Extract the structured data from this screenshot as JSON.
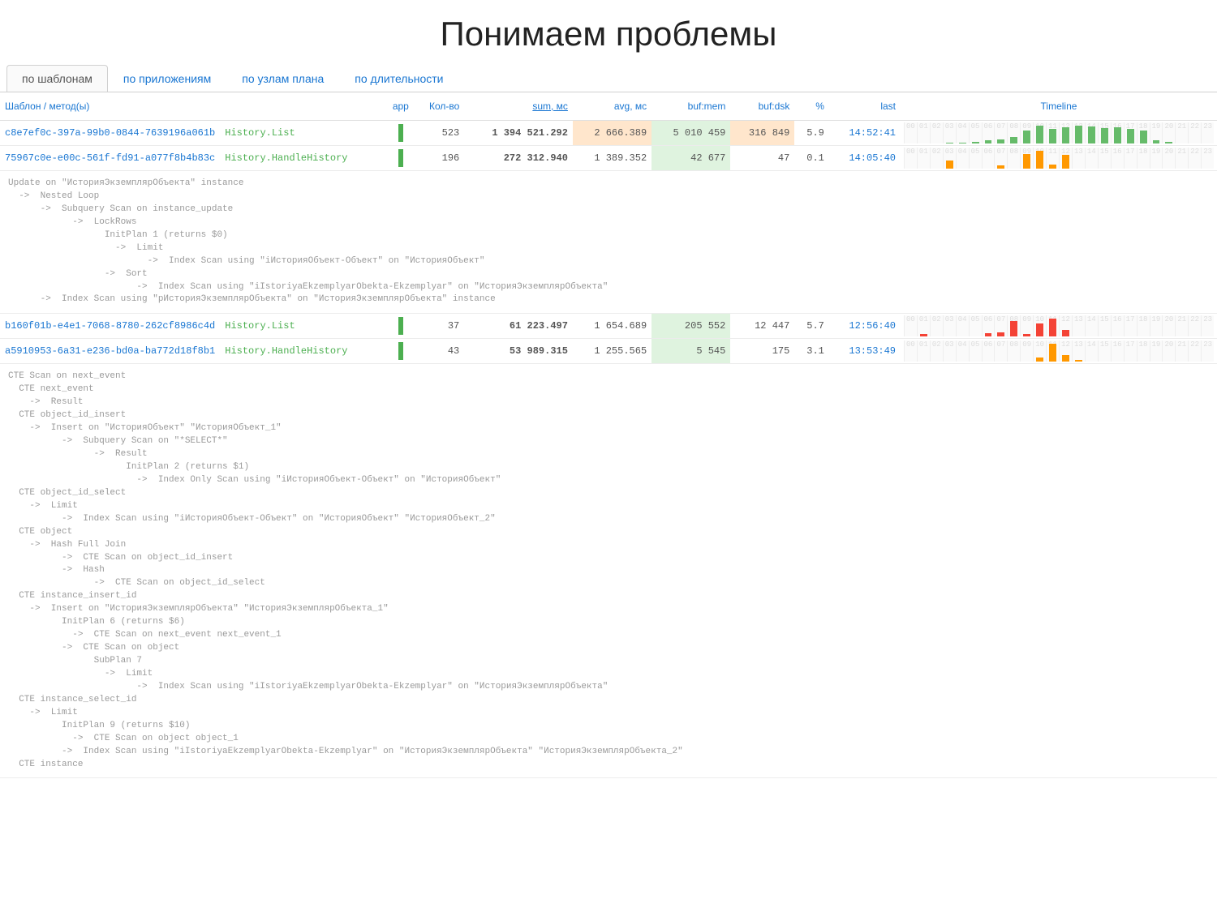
{
  "title": "Понимаем проблемы",
  "tabs": [
    {
      "label": "по шаблонам",
      "active": true
    },
    {
      "label": "по приложениям",
      "active": false
    },
    {
      "label": "по узлам плана",
      "active": false
    },
    {
      "label": "по длительности",
      "active": false
    }
  ],
  "headers": {
    "template": "Шаблон / метод(ы)",
    "app": "app",
    "kol": "Кол-во",
    "sum": "sum, мс",
    "avg": "avg, мс",
    "bufmem": "buf:mem",
    "bufdsk": "buf:dsk",
    "pct": "%",
    "last": "last",
    "timeline": "Timeline"
  },
  "colors": {
    "link": "#1976d2",
    "method": "#4caf50",
    "hl_orange": "#ffe6cc",
    "hl_green": "#dff3df",
    "tl_green": "#66bb6a",
    "tl_orange": "#ff9800",
    "tl_red": "#f44336"
  },
  "rows": [
    {
      "hash": "c8e7ef0c-397a-99b0-0844-7639196a061b",
      "method": "History.List",
      "kol": "523",
      "sum": "1 394 521.292",
      "avg": "2 666.389",
      "avg_hl": "o",
      "bufmem": "5 010 459",
      "bufmem_hl": "g",
      "bufdsk": "316 849",
      "bufdsk_hl": "o",
      "pct": "5.9",
      "last": "14:52:41",
      "tl": [
        0,
        0,
        0,
        1,
        1,
        2,
        4,
        5,
        8,
        16,
        22,
        18,
        20,
        22,
        21,
        19,
        20,
        18,
        16,
        4,
        2,
        0,
        0,
        0
      ],
      "tl_color": "#66bb6a"
    },
    {
      "hash": "75967c0e-e00c-561f-fd91-a077f8b4b83c",
      "method": "History.HandleHistory",
      "kol": "196",
      "sum": "272 312.940",
      "avg": "1 389.352",
      "bufmem": "42 677",
      "bufmem_hl": "g",
      "bufdsk": "47",
      "pct": "0.1",
      "last": "14:05:40",
      "tl": [
        0,
        0,
        0,
        8,
        0,
        0,
        0,
        3,
        0,
        15,
        18,
        4,
        14,
        0,
        0,
        0,
        0,
        0,
        0,
        0,
        0,
        0,
        0,
        0
      ],
      "tl_color": "#ff9800",
      "plan": "Update on \"ИсторияЭкземплярОбъекта\" instance\n  ->  Nested Loop\n      ->  Subquery Scan on instance_update\n            ->  LockRows\n                  InitPlan 1 (returns $0)\n                    ->  Limit\n                          ->  Index Scan using \"iИсторияОбъект-Объект\" on \"ИсторияОбъект\"\n                  ->  Sort\n                        ->  Index Scan using \"iIstoriyaEkzemplyarObekta-Ekzemplyar\" on \"ИсторияЭкземплярОбъекта\"\n      ->  Index Scan using \"pИсторияЭкземплярОбъекта\" on \"ИсторияЭкземплярОбъекта\" instance"
    },
    {
      "hash": "b160f01b-e4e1-7068-8780-262cf8986c4d",
      "method": "History.List",
      "kol": "37",
      "sum": "61 223.497",
      "avg": "1 654.689",
      "bufmem": "205 552",
      "bufmem_hl": "g",
      "bufdsk": "12 447",
      "pct": "5.7",
      "last": "12:56:40",
      "tl": [
        0,
        3,
        0,
        0,
        0,
        0,
        4,
        5,
        18,
        3,
        15,
        20,
        8,
        0,
        0,
        0,
        0,
        0,
        0,
        0,
        0,
        0,
        0,
        0
      ],
      "tl_color": "#f44336"
    },
    {
      "hash": "a5910953-6a31-e236-bd0a-ba772d18f8b1",
      "method": "History.HandleHistory",
      "kol": "43",
      "sum": "53 989.315",
      "avg": "1 255.565",
      "bufmem": "5 545",
      "bufmem_hl": "g",
      "bufdsk": "175",
      "pct": "3.1",
      "last": "13:53:49",
      "tl": [
        0,
        0,
        0,
        0,
        0,
        0,
        0,
        0,
        0,
        0,
        4,
        16,
        6,
        2,
        0,
        0,
        0,
        0,
        0,
        0,
        0,
        0,
        0,
        0
      ],
      "tl_color": "#ff9800",
      "plan": "CTE Scan on next_event\n  CTE next_event\n    ->  Result\n  CTE object_id_insert\n    ->  Insert on \"ИсторияОбъект\" \"ИсторияОбъект_1\"\n          ->  Subquery Scan on \"*SELECT*\"\n                ->  Result\n                      InitPlan 2 (returns $1)\n                        ->  Index Only Scan using \"iИсторияОбъект-Объект\" on \"ИсторияОбъект\"\n  CTE object_id_select\n    ->  Limit\n          ->  Index Scan using \"iИсторияОбъект-Объект\" on \"ИсторияОбъект\" \"ИсторияОбъект_2\"\n  CTE object\n    ->  Hash Full Join\n          ->  CTE Scan on object_id_insert\n          ->  Hash\n                ->  CTE Scan on object_id_select\n  CTE instance_insert_id\n    ->  Insert on \"ИсторияЭкземплярОбъекта\" \"ИсторияЭкземплярОбъекта_1\"\n          InitPlan 6 (returns $6)\n            ->  CTE Scan on next_event next_event_1\n          ->  CTE Scan on object\n                SubPlan 7\n                  ->  Limit\n                        ->  Index Scan using \"iIstoriyaEkzemplyarObekta-Ekzemplyar\" on \"ИсторияЭкземплярОбъекта\"\n  CTE instance_select_id\n    ->  Limit\n          InitPlan 9 (returns $10)\n            ->  CTE Scan on object object_1\n          ->  Index Scan using \"iIstoriyaEkzemplyarObekta-Ekzemplyar\" on \"ИсторияЭкземплярОбъекта\" \"ИсторияЭкземплярОбъекта_2\"\n  CTE instance"
    }
  ]
}
